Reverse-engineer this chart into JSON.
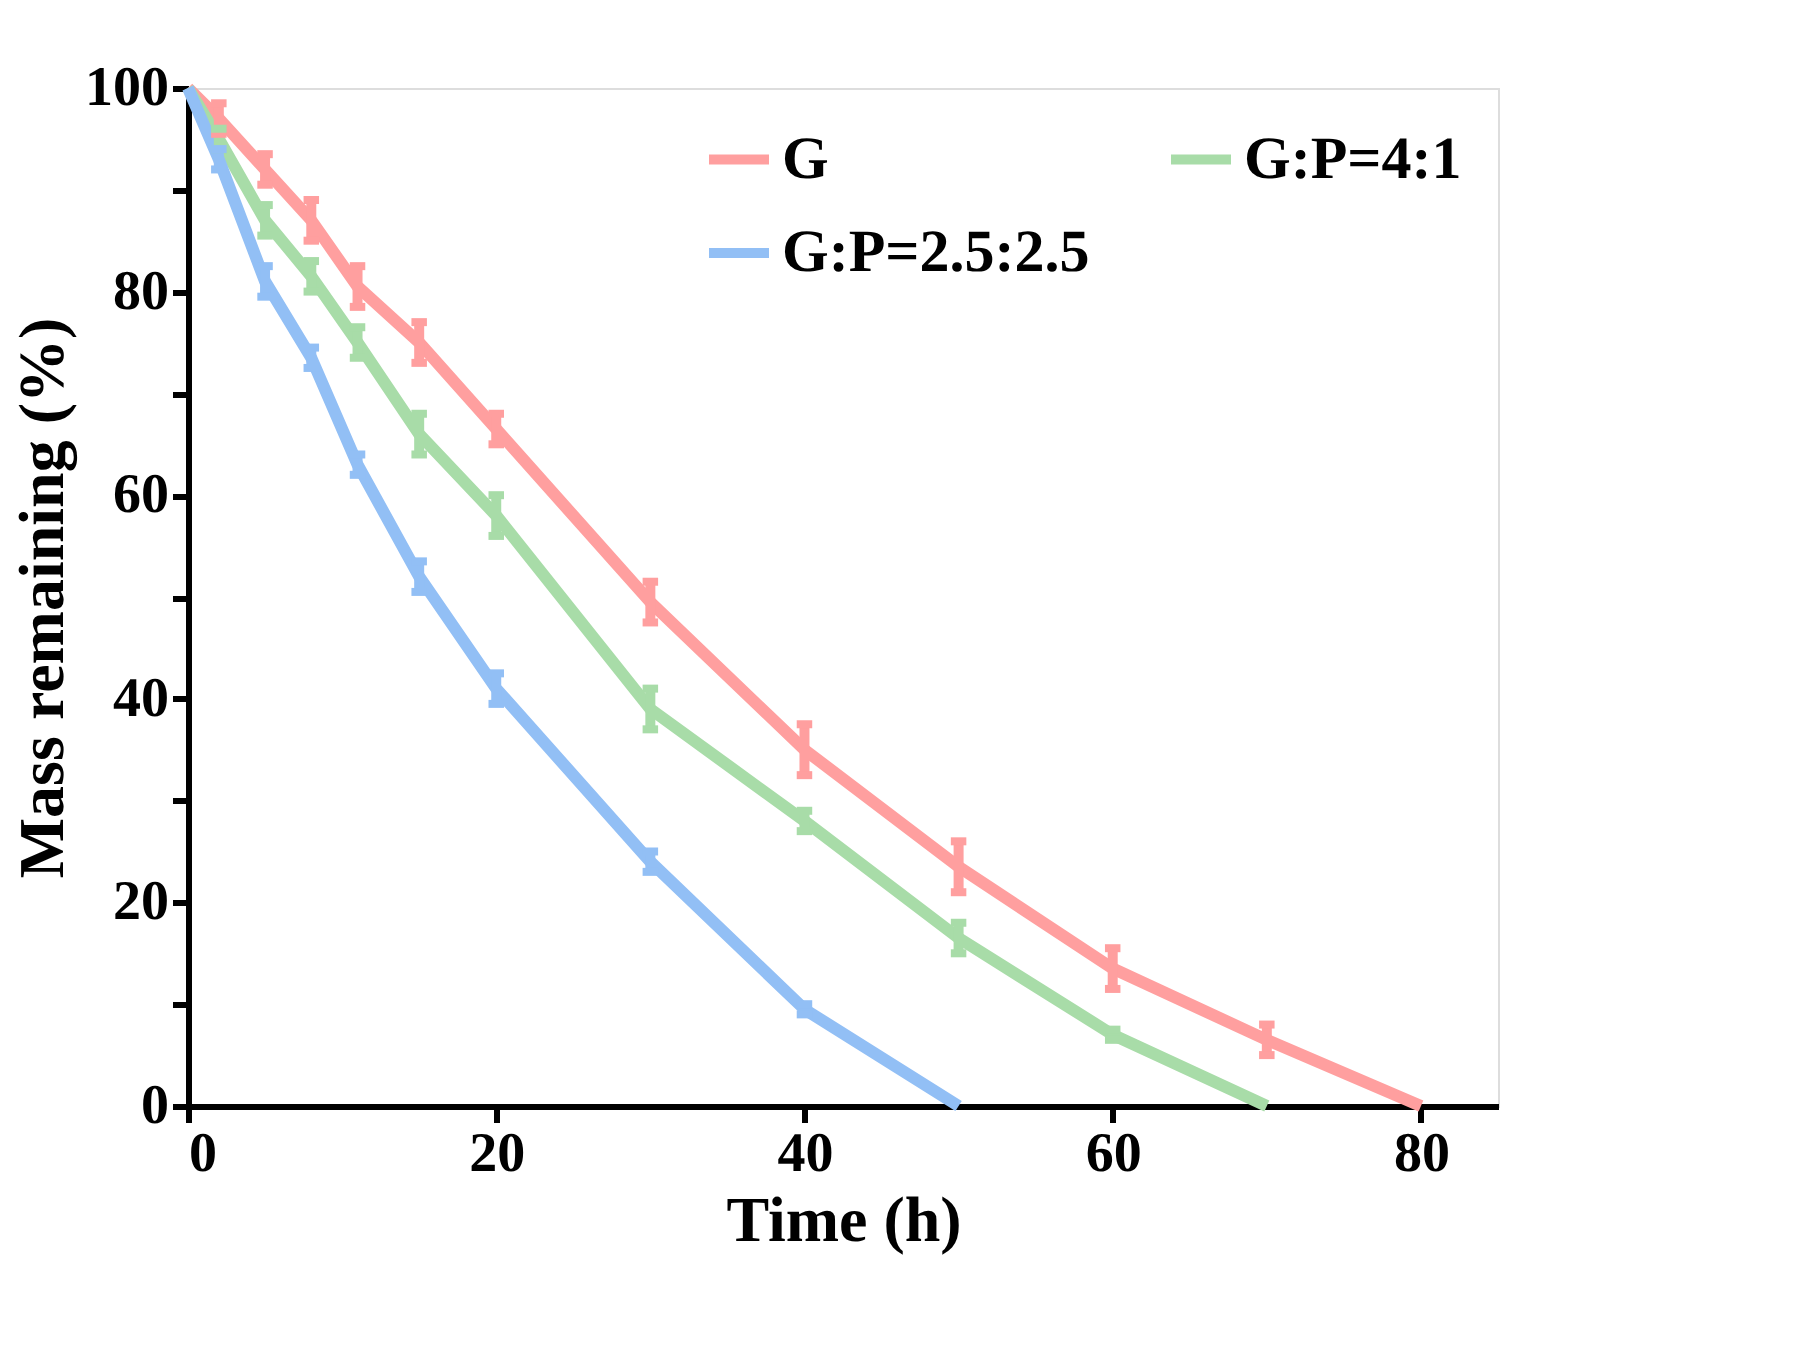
{
  "chart_data": {
    "type": "line",
    "xlabel": "Time (h)",
    "ylabel": "Mass remaining (%)",
    "xlim": [
      0,
      85
    ],
    "ylim": [
      0,
      100
    ],
    "xticks": [
      0,
      20,
      40,
      60,
      80
    ],
    "yticks": [
      0,
      {
        "value": 10,
        "label": null
      },
      20,
      {
        "value": 30,
        "label": null
      },
      40,
      {
        "value": 50,
        "label": null
      },
      60,
      {
        "value": 70,
        "label": null
      },
      80,
      {
        "value": 90,
        "label": null
      },
      100
    ],
    "grid": false,
    "legend": "top right",
    "line_style": "solid",
    "series": [
      {
        "name": "G",
        "color": "#ff9f9f",
        "x": [
          0,
          2,
          5,
          8,
          11,
          15,
          20,
          30,
          40,
          50,
          60,
          70,
          80
        ],
        "values": [
          100,
          97,
          92,
          87,
          80.5,
          75,
          66.5,
          49.5,
          35,
          23.5,
          13.5,
          6.5,
          0
        ],
        "errors": [
          null,
          1.5,
          1.5,
          2,
          2,
          2,
          1.5,
          2,
          2.5,
          2.5,
          2,
          1.5,
          null
        ]
      },
      {
        "name": "G:P=4:1",
        "color": "#a8dca8",
        "x": [
          0,
          2,
          5,
          8,
          11,
          15,
          20,
          30,
          40,
          50,
          60,
          70
        ],
        "values": [
          100,
          95,
          87,
          81.5,
          75,
          66,
          58,
          39,
          28,
          16.5,
          7,
          0
        ],
        "errors": [
          null,
          1,
          1.5,
          1.5,
          1.5,
          2,
          2,
          2,
          1,
          1.5,
          0.5,
          null
        ]
      },
      {
        "name": "G:P=2.5:2.5",
        "color": "#92bff5",
        "x": [
          0,
          2,
          5,
          8,
          11,
          15,
          20,
          30,
          40,
          50
        ],
        "values": [
          100,
          93,
          81,
          73.5,
          63,
          52,
          41,
          24,
          9.5,
          0
        ],
        "errors": [
          null,
          1,
          1.5,
          1,
          1,
          1.5,
          1.5,
          1,
          0.5,
          null
        ]
      }
    ]
  }
}
